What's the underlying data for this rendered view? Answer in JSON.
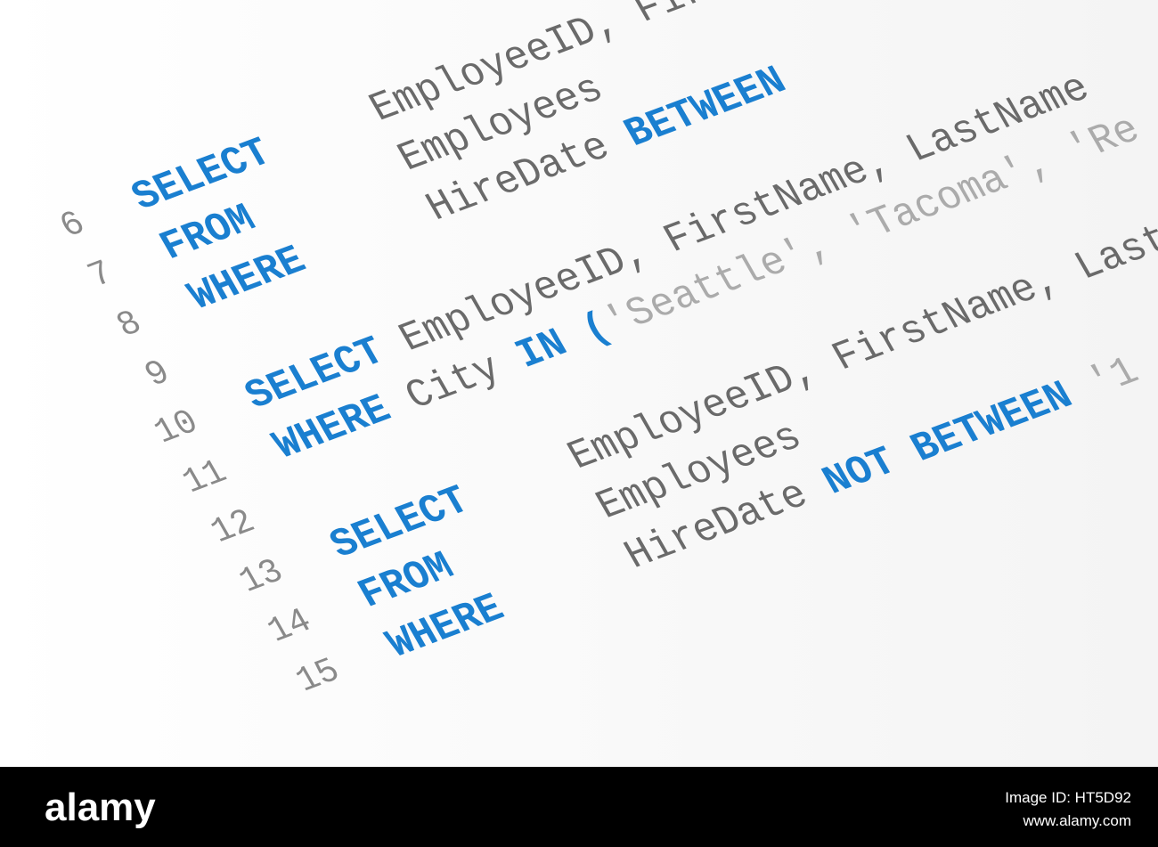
{
  "code": {
    "style": {
      "keyword": "#1a7fd0",
      "identifier": "#6a6a6a",
      "string": "#ababab",
      "line_number": "#8a8a8a"
    },
    "lines": [
      {
        "number": "6",
        "tokens": [
          {
            "text": "SELECT",
            "kind": "keyword"
          },
          {
            "text": "EmployeeID, FirstName, LastName",
            "kind": "identifier"
          }
        ]
      },
      {
        "number": "7",
        "tokens": [
          {
            "text": "FROM",
            "kind": "keyword"
          },
          {
            "text": "Employees",
            "kind": "identifier"
          }
        ]
      },
      {
        "number": "8",
        "tokens": [
          {
            "text": "WHERE",
            "kind": "keyword"
          },
          {
            "text": "HireDate",
            "kind": "identifier"
          },
          {
            "text": "BETWEEN",
            "kind": "keyword"
          }
        ]
      },
      {
        "number": "9",
        "tokens": []
      },
      {
        "number": "10",
        "tokens": [
          {
            "text": "SELECT",
            "kind": "keyword"
          },
          {
            "text": "EmployeeID, FirstName, LastName",
            "kind": "identifier"
          }
        ]
      },
      {
        "number": "11",
        "tokens": [
          {
            "text": "WHERE",
            "kind": "keyword"
          },
          {
            "text": "City",
            "kind": "identifier"
          },
          {
            "text": "IN",
            "kind": "keyword"
          },
          {
            "text": "(",
            "kind": "keyword"
          },
          {
            "text": "'Seattle', 'Tacoma', 'Re",
            "kind": "string"
          }
        ]
      },
      {
        "number": "12",
        "tokens": []
      },
      {
        "number": "13",
        "tokens": [
          {
            "text": "SELECT",
            "kind": "keyword"
          },
          {
            "text": "EmployeeID, FirstName, Last",
            "kind": "identifier"
          }
        ]
      },
      {
        "number": "14",
        "tokens": [
          {
            "text": "FROM",
            "kind": "keyword"
          },
          {
            "text": "Employees",
            "kind": "identifier"
          }
        ]
      },
      {
        "number": "15",
        "tokens": [
          {
            "text": "WHERE",
            "kind": "keyword"
          },
          {
            "text": "HireDate",
            "kind": "identifier"
          },
          {
            "text": "NOT BETWEEN",
            "kind": "keyword"
          },
          {
            "text": "'1",
            "kind": "string"
          }
        ]
      }
    ]
  },
  "footer": {
    "logo": "alamy",
    "image_id": "Image ID: HT5D92",
    "url": "www.alamy.com"
  }
}
